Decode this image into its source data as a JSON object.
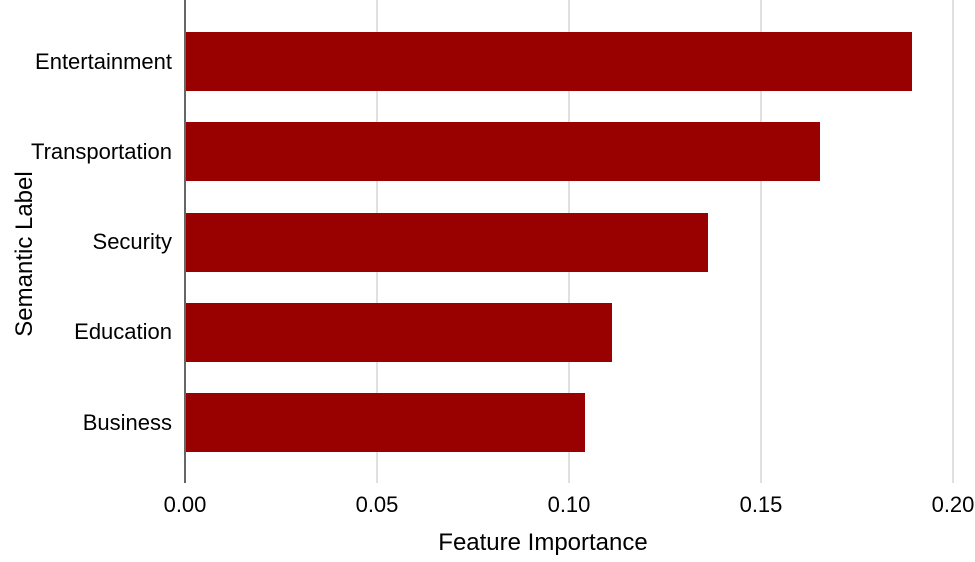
{
  "chart_data": {
    "type": "bar",
    "orientation": "horizontal",
    "title": "",
    "xlabel": "Feature Importance",
    "ylabel": "Semantic Label",
    "categories": [
      "Entertainment",
      "Transportation",
      "Security",
      "Education",
      "Business"
    ],
    "values": [
      0.189,
      0.165,
      0.136,
      0.111,
      0.104
    ],
    "xlim": [
      0,
      0.2
    ],
    "x_ticks": [
      {
        "value": 0.0,
        "label": "0.00"
      },
      {
        "value": 0.05,
        "label": "0.05"
      },
      {
        "value": 0.1,
        "label": "0.10"
      },
      {
        "value": 0.15,
        "label": "0.15"
      },
      {
        "value": 0.2,
        "label": "0.20"
      }
    ],
    "grid": true,
    "legend": "none",
    "colors": {
      "bar": "#990000",
      "axis_line": "#666666",
      "gridline": "#e0e0e0",
      "text": "#000000",
      "background": "#ffffff"
    }
  }
}
